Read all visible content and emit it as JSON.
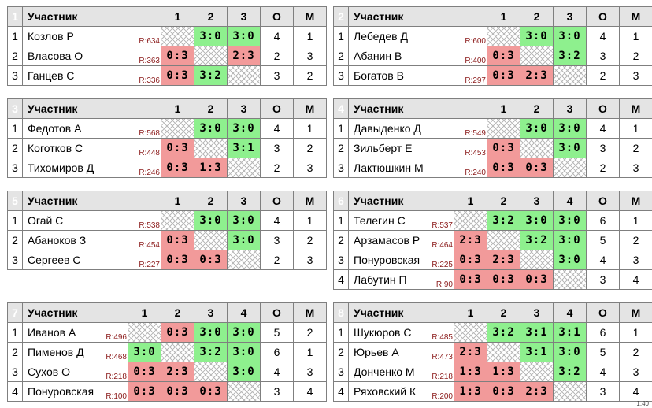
{
  "header": {
    "participant": "Участник",
    "col_o": "О",
    "col_m": "М"
  },
  "groups": [
    {
      "num": "1",
      "cols": [
        "1",
        "2",
        "3"
      ],
      "rows": [
        {
          "pos": "1",
          "name": "Козлов Р",
          "rating": "R:634",
          "cells": [
            "",
            "3:0",
            "3:0"
          ],
          "o": "4",
          "m": "1"
        },
        {
          "pos": "2",
          "name": "Власова О",
          "rating": "R:363",
          "cells": [
            "0:3",
            "",
            "2:3"
          ],
          "o": "2",
          "m": "3"
        },
        {
          "pos": "3",
          "name": "Ганцев С",
          "rating": "R:336",
          "cells": [
            "0:3",
            "3:2",
            ""
          ],
          "o": "3",
          "m": "2"
        }
      ]
    },
    {
      "num": "2",
      "cols": [
        "1",
        "2",
        "3"
      ],
      "rows": [
        {
          "pos": "1",
          "name": "Лебедев Д",
          "rating": "R:600",
          "cells": [
            "",
            "3:0",
            "3:0"
          ],
          "o": "4",
          "m": "1"
        },
        {
          "pos": "2",
          "name": "Абанин В",
          "rating": "R:400",
          "cells": [
            "0:3",
            "",
            "3:2"
          ],
          "o": "3",
          "m": "2"
        },
        {
          "pos": "3",
          "name": "Богатов В",
          "rating": "R:297",
          "cells": [
            "0:3",
            "2:3",
            ""
          ],
          "o": "2",
          "m": "3"
        }
      ]
    },
    {
      "num": "3",
      "cols": [
        "1",
        "2",
        "3"
      ],
      "rows": [
        {
          "pos": "1",
          "name": "Федотов А",
          "rating": "R:568",
          "cells": [
            "",
            "3:0",
            "3:0"
          ],
          "o": "4",
          "m": "1"
        },
        {
          "pos": "2",
          "name": "Коготков С",
          "rating": "R:448",
          "cells": [
            "0:3",
            "",
            "3:1"
          ],
          "o": "3",
          "m": "2"
        },
        {
          "pos": "3",
          "name": "Тихомиров Д",
          "rating": "R:246",
          "cells": [
            "0:3",
            "1:3",
            ""
          ],
          "o": "2",
          "m": "3"
        }
      ]
    },
    {
      "num": "4",
      "cols": [
        "1",
        "2",
        "3"
      ],
      "rows": [
        {
          "pos": "1",
          "name": "Давыденко Д",
          "rating": "R:549",
          "cells": [
            "",
            "3:0",
            "3:0"
          ],
          "o": "4",
          "m": "1"
        },
        {
          "pos": "2",
          "name": "Зильберт Е",
          "rating": "R:453",
          "cells": [
            "0:3",
            "",
            "3:0"
          ],
          "o": "3",
          "m": "2"
        },
        {
          "pos": "3",
          "name": "Лактюшкин М",
          "rating": "R:240",
          "cells": [
            "0:3",
            "0:3",
            ""
          ],
          "o": "2",
          "m": "3"
        }
      ]
    },
    {
      "num": "5",
      "cols": [
        "1",
        "2",
        "3"
      ],
      "rows": [
        {
          "pos": "1",
          "name": "Огай С",
          "rating": "R:538",
          "cells": [
            "",
            "3:0",
            "3:0"
          ],
          "o": "4",
          "m": "1"
        },
        {
          "pos": "2",
          "name": "Абаноков З",
          "rating": "R:454",
          "cells": [
            "0:3",
            "",
            "3:0"
          ],
          "o": "3",
          "m": "2"
        },
        {
          "pos": "3",
          "name": "Сергеев С",
          "rating": "R:227",
          "cells": [
            "0:3",
            "0:3",
            ""
          ],
          "o": "2",
          "m": "3"
        }
      ]
    },
    {
      "num": "6",
      "cols": [
        "1",
        "2",
        "3",
        "4"
      ],
      "rows": [
        {
          "pos": "1",
          "name": "Телегин С",
          "rating": "R:537",
          "cells": [
            "",
            "3:2",
            "3:0",
            "3:0"
          ],
          "o": "6",
          "m": "1"
        },
        {
          "pos": "2",
          "name": "Арзамасов Р",
          "rating": "R:464",
          "cells": [
            "2:3",
            "",
            "3:2",
            "3:0"
          ],
          "o": "5",
          "m": "2"
        },
        {
          "pos": "3",
          "name": "Понуровская",
          "rating": "R:225",
          "cells": [
            "0:3",
            "2:3",
            "",
            "3:0"
          ],
          "o": "4",
          "m": "3"
        },
        {
          "pos": "4",
          "name": "Лабутин П",
          "rating": "R:90",
          "cells": [
            "0:3",
            "0:3",
            "0:3",
            ""
          ],
          "o": "3",
          "m": "4"
        }
      ]
    },
    {
      "num": "7",
      "cols": [
        "1",
        "2",
        "3",
        "4"
      ],
      "rows": [
        {
          "pos": "1",
          "name": "Иванов А",
          "rating": "R:496",
          "cells": [
            "",
            "0:3",
            "3:0",
            "3:0"
          ],
          "o": "5",
          "m": "2"
        },
        {
          "pos": "2",
          "name": "Пименов Д",
          "rating": "R:468",
          "cells": [
            "3:0",
            "",
            "3:2",
            "3:0"
          ],
          "o": "6",
          "m": "1"
        },
        {
          "pos": "3",
          "name": "Сухов О",
          "rating": "R:218",
          "cells": [
            "0:3",
            "2:3",
            "",
            "3:0"
          ],
          "o": "4",
          "m": "3"
        },
        {
          "pos": "4",
          "name": "Понуровская",
          "rating": "R:100",
          "cells": [
            "0:3",
            "0:3",
            "0:3",
            ""
          ],
          "o": "3",
          "m": "4"
        }
      ]
    },
    {
      "num": "8",
      "cols": [
        "1",
        "2",
        "3",
        "4"
      ],
      "rows": [
        {
          "pos": "1",
          "name": "Шукюров С",
          "rating": "R:485",
          "cells": [
            "",
            "3:2",
            "3:1",
            "3:1"
          ],
          "o": "6",
          "m": "1"
        },
        {
          "pos": "2",
          "name": "Юрьев А",
          "rating": "R:473",
          "cells": [
            "2:3",
            "",
            "3:1",
            "3:0"
          ],
          "o": "5",
          "m": "2"
        },
        {
          "pos": "3",
          "name": "Донченко М",
          "rating": "R:218",
          "cells": [
            "1:3",
            "1:3",
            "",
            "3:2"
          ],
          "o": "4",
          "m": "3"
        },
        {
          "pos": "4",
          "name": "Ряховский К",
          "rating": "R:200",
          "cells": [
            "1:3",
            "0:3",
            "2:3",
            ""
          ],
          "o": "3",
          "m": "4"
        }
      ]
    }
  ],
  "footer": "1.40"
}
